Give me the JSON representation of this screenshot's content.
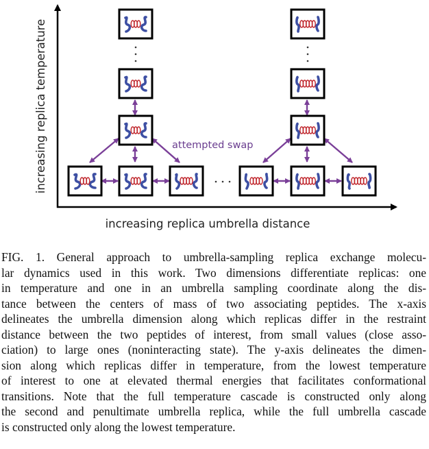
{
  "figure": {
    "y_axis_label": "increasing replica temperature",
    "x_axis_label": "increasing replica umbrella distance",
    "swap_label": "attempted swap",
    "vertical_ellipsis": "·",
    "horizontal_ellipsis": "· · ·",
    "colors": {
      "axis": "#000000",
      "arrow": "#7a3f98",
      "label": "#6a3d8f",
      "peptide_strand": "#3d4fa3",
      "helix": "#c0272d",
      "box_border": "#000000"
    },
    "icons": [
      "peptide-pair-icon",
      "helix-icon"
    ]
  },
  "caption": {
    "lines": [
      "FIG. 1.  General approach to umbrella-sampling replica exchange molecu-",
      "lar dynamics used in this work. Two dimensions differentiate replicas: one",
      "in temperature and one in an umbrella sampling coordinate along the dis-",
      "tance between the centers of mass of two associating peptides. The x-axis",
      "delineates the umbrella dimension along which replicas differ in the restraint",
      "distance between the two peptides of interest, from small values (close asso-",
      "ciation) to large ones (noninteracting state). The y-axis delineates the dimen-",
      "sion along which replicas differ in temperature, from the lowest temperature",
      "of interest to one at elevated thermal energies that facilitates conformational",
      "transitions. Note that the full temperature cascade is constructed only along",
      "the second and penultimate umbrella replica, while the full umbrella cascade",
      "is constructed only along the lowest temperature."
    ]
  }
}
